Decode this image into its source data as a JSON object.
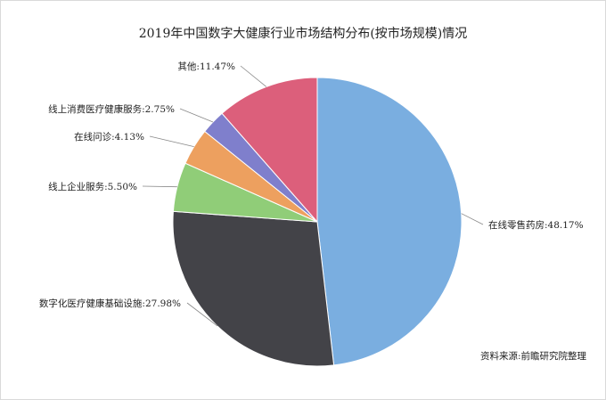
{
  "chart_data": {
    "type": "pie",
    "title": "2019年中国数字大健康行业市场结构分布(按市场规模)情况",
    "slices": [
      {
        "name": "在线零售药房",
        "value": 48.17,
        "label": "在线零售药房:48.17%",
        "color": "#7aaee0"
      },
      {
        "name": "数字化医疗健康基础设施",
        "value": 27.98,
        "label": "数字化医疗健康基础设施:27.98%",
        "color": "#434348"
      },
      {
        "name": "线上企业服务",
        "value": 5.5,
        "label": "线上企业服务:5.50%",
        "color": "#90cd78"
      },
      {
        "name": "在线问诊",
        "value": 4.13,
        "label": "在线问诊:4.13%",
        "color": "#eda05f"
      },
      {
        "name": "线上消费医疗健康服务",
        "value": 2.75,
        "label": "线上消费医疗健康服务:2.75%",
        "color": "#7f7fcc"
      },
      {
        "name": "其他",
        "value": 11.47,
        "label": "其他:11.47%",
        "color": "#dc5f7b"
      }
    ],
    "source": "资料来源:前瞻研究院整理"
  }
}
